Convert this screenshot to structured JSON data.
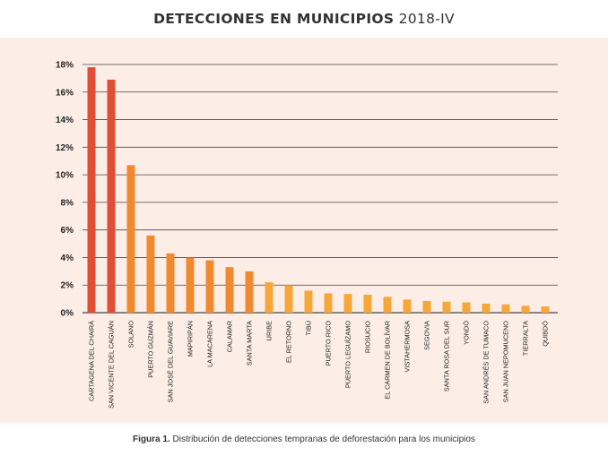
{
  "header": {
    "title_bold": "DETECCIONES EN MUNICIPIOS",
    "title_light": "2018-IV"
  },
  "caption": {
    "label": "Figura 1.",
    "text": "Distribución de detecciones tempranas de deforestación para los municipios"
  },
  "colors": {
    "red": "#e04f35",
    "orange": "#f18a2f",
    "light_orange": "#f6a73a",
    "grid": "#444444",
    "panel": "#fceee7"
  },
  "chart_data": {
    "type": "bar",
    "title": "DETECCIONES EN MUNICIPIOS 2018-IV",
    "xlabel": "",
    "ylabel": "",
    "ylim": [
      0,
      18
    ],
    "yticks": [
      0,
      2,
      4,
      6,
      8,
      10,
      12,
      14,
      16,
      18
    ],
    "ytick_labels": [
      "0%",
      "2%",
      "4%",
      "6%",
      "8%",
      "10%",
      "12%",
      "14%",
      "16%",
      "18%"
    ],
    "grid": true,
    "categories": [
      "CARTAGENA DEL CHAIRÁ",
      "SAN VICENTE DEL CAGUÁN",
      "SOLANO",
      "PUERTO GUZMÁN",
      "SAN JOSÉ DEL GUAVIARE",
      "MAPIRIPÁN",
      "LA MACARENA",
      "CALAMAR",
      "SANTA MARTA",
      "URIBE",
      "EL RETORNO",
      "TIBÚ",
      "PUERTO RICO",
      "PUERTO LEGUÍZAMO",
      "RIOSUCIO",
      "EL CARMEN DE BOLÍVAR",
      "VISTAHERMOSA",
      "SEGOVIA",
      "SANTA ROSA DEL SUR",
      "YONDÓ",
      "SAN ANDRÉS DE TUMACO",
      "SAN JUAN NEPOMUCENO",
      "TIERRALTA",
      "QUIBDÓ"
    ],
    "values": [
      17.8,
      16.9,
      10.7,
      5.6,
      4.3,
      4.0,
      3.8,
      3.3,
      3.0,
      2.2,
      2.0,
      1.6,
      1.4,
      1.35,
      1.3,
      1.15,
      0.95,
      0.85,
      0.8,
      0.75,
      0.65,
      0.6,
      0.5,
      0.45
    ],
    "bar_color_groups": [
      "red",
      "red",
      "orange",
      "orange",
      "orange",
      "orange",
      "orange",
      "orange",
      "orange",
      "light_orange",
      "light_orange",
      "light_orange",
      "light_orange",
      "light_orange",
      "light_orange",
      "light_orange",
      "light_orange",
      "light_orange",
      "light_orange",
      "light_orange",
      "light_orange",
      "light_orange",
      "light_orange",
      "light_orange"
    ]
  }
}
